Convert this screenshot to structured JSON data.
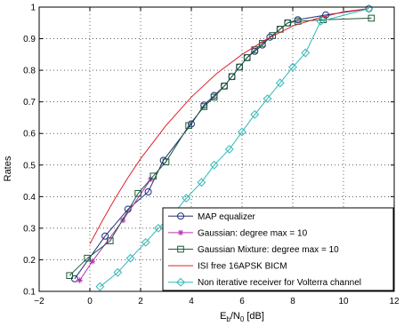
{
  "chart_data": {
    "type": "line",
    "title": "",
    "xlabel_main": "E",
    "xlabel_sub1": "b",
    "xlabel_mid": "/N",
    "xlabel_sub2": "0",
    "xlabel_unit": " [dB]",
    "ylabel": "Rates",
    "xlim": [
      -2,
      12
    ],
    "ylim": [
      0.1,
      1
    ],
    "xticks": [
      "−2",
      "0",
      "2",
      "4",
      "6",
      "8",
      "10",
      "12"
    ],
    "yticks": [
      "0.1",
      "0.2",
      "0.3",
      "0.4",
      "0.5",
      "0.6",
      "0.7",
      "0.8",
      "0.9",
      "1"
    ],
    "grid": true,
    "legend_position": "bottom-right",
    "series": [
      {
        "name": "MAP equalizer",
        "color": "#1f2f7a",
        "marker": "circle",
        "x": [
          -0.6,
          0.6,
          1.5,
          2.3,
          2.9,
          4.0,
          4.5,
          4.9,
          5.3,
          5.6,
          5.9,
          6.2,
          6.5,
          6.8,
          7.1,
          7.5,
          7.8,
          8.2,
          9.3,
          11.0
        ],
        "y": [
          0.14,
          0.275,
          0.36,
          0.415,
          0.515,
          0.63,
          0.69,
          0.72,
          0.75,
          0.78,
          0.81,
          0.84,
          0.86,
          0.88,
          0.905,
          0.93,
          0.95,
          0.96,
          0.975,
          0.995
        ]
      },
      {
        "name": "Gaussian: degree max = 10",
        "color": "#b233b0",
        "marker": "star",
        "x": [
          -0.4,
          0.1,
          1.3,
          2.4
        ],
        "y": [
          0.135,
          0.195,
          0.325,
          0.455
        ]
      },
      {
        "name": "Gaussian Mixture: degree max = 10",
        "color": "#1f5a3a",
        "marker": "square",
        "x": [
          -0.8,
          -0.1,
          0.8,
          1.9,
          2.5,
          3.0,
          3.9,
          4.5,
          4.9,
          5.3,
          5.6,
          5.9,
          6.2,
          6.5,
          6.8,
          7.2,
          7.5,
          7.8,
          8.2,
          9.2,
          11.1
        ],
        "y": [
          0.15,
          0.205,
          0.26,
          0.41,
          0.465,
          0.51,
          0.625,
          0.685,
          0.715,
          0.75,
          0.78,
          0.81,
          0.84,
          0.865,
          0.885,
          0.91,
          0.93,
          0.95,
          0.955,
          0.96,
          0.965
        ]
      },
      {
        "name": "ISI free 16APSK BICM",
        "color": "#e0202a",
        "marker": "none",
        "x": [
          0.0,
          0.5,
          1.0,
          1.5,
          2.0,
          3.0,
          4.0,
          5.0,
          6.0,
          7.0,
          8.0,
          9.0,
          10.0,
          11.0
        ],
        "y": [
          0.25,
          0.325,
          0.395,
          0.46,
          0.52,
          0.625,
          0.715,
          0.79,
          0.85,
          0.9,
          0.94,
          0.965,
          0.985,
          0.995
        ]
      },
      {
        "name": "Non iterative receiver for Volterra channel",
        "color": "#2fb8b6",
        "marker": "diamond",
        "x": [
          0.4,
          1.1,
          1.6,
          2.2,
          2.7,
          3.3,
          3.8,
          4.4,
          4.9,
          5.5,
          6.0,
          6.5,
          7.0,
          7.5,
          8.0,
          8.5,
          9.1,
          11.0
        ],
        "y": [
          0.115,
          0.16,
          0.205,
          0.255,
          0.3,
          0.345,
          0.395,
          0.445,
          0.5,
          0.55,
          0.605,
          0.66,
          0.71,
          0.76,
          0.81,
          0.855,
          0.955,
          0.995
        ]
      }
    ]
  }
}
